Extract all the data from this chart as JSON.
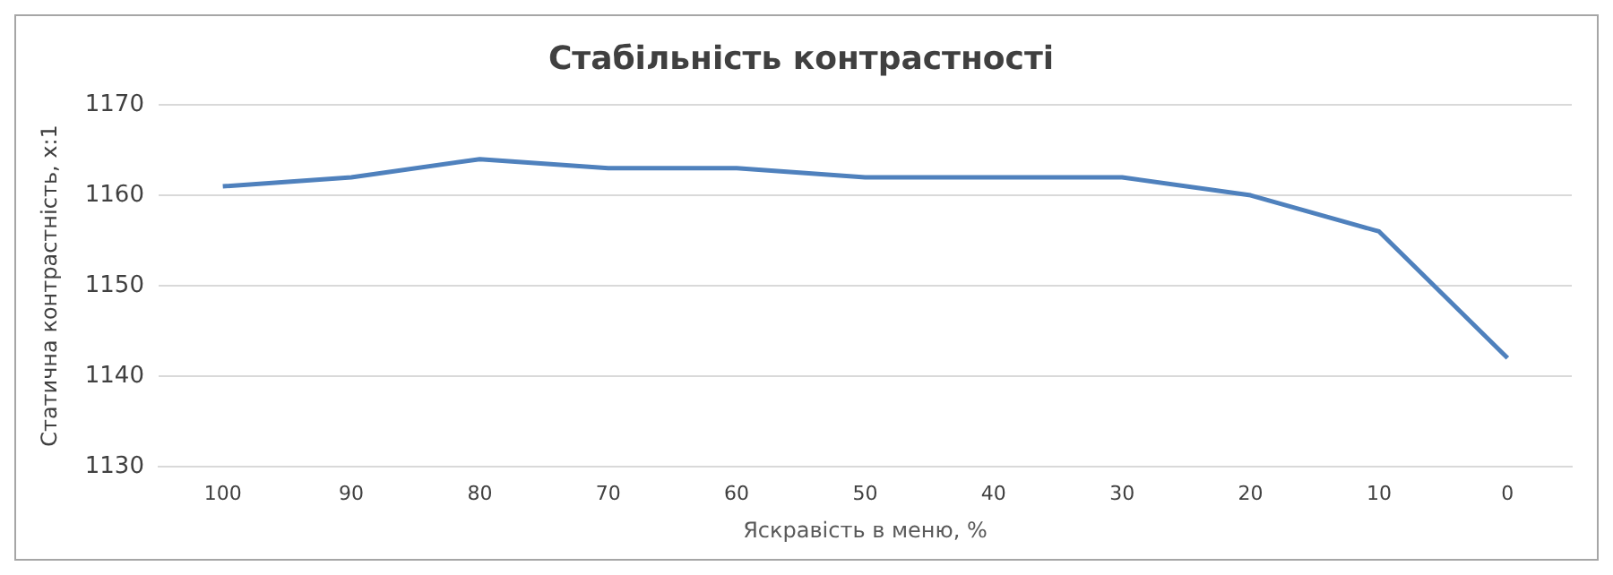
{
  "chart_data": {
    "type": "line",
    "title": "Стабільність контрастності",
    "xlabel": "Яскравість в меню, %",
    "ylabel": "Статична контрастність, x:1",
    "categories": [
      "100",
      "90",
      "80",
      "70",
      "60",
      "50",
      "40",
      "30",
      "20",
      "10",
      "0"
    ],
    "series": [
      {
        "color": "#4f81bd",
        "values": [
          1161,
          1162,
          1164,
          1163,
          1163,
          1162,
          1162,
          1162,
          1160,
          1156,
          1142
        ]
      }
    ],
    "ylim": [
      1130,
      1170
    ],
    "yticks": [
      1130,
      1140,
      1150,
      1160,
      1170
    ],
    "grid": "y",
    "legend": false,
    "marker": "none",
    "line_style": "solid"
  }
}
